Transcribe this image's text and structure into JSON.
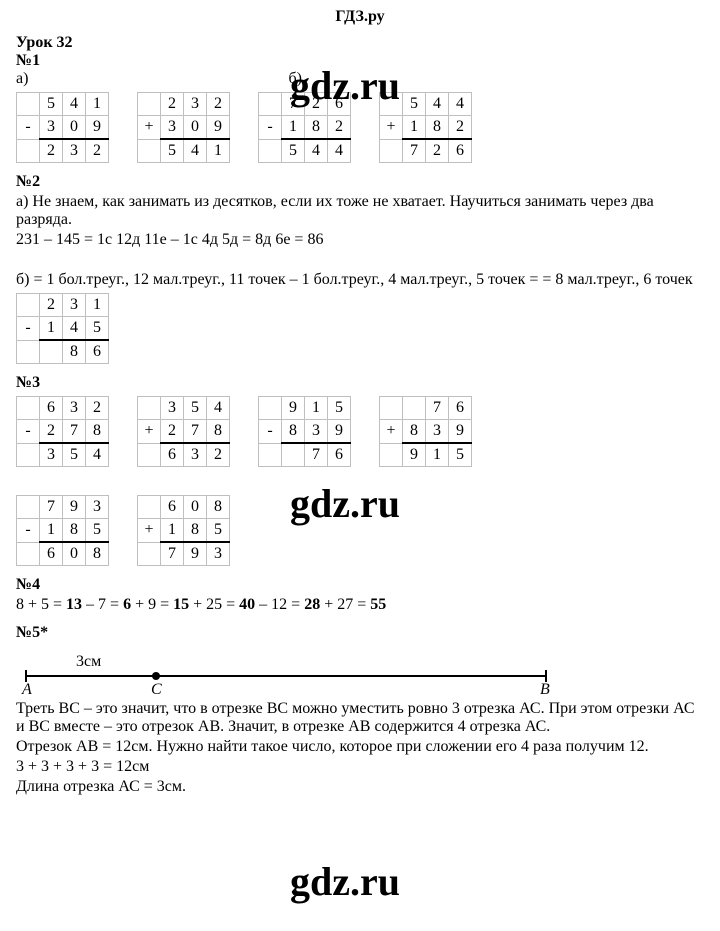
{
  "header": "ГДЗ.ру",
  "watermark": "gdz.ru",
  "lesson_title": "Урок 32",
  "nums": {
    "n1": "№1",
    "n2": "№2",
    "n3": "№3",
    "n4": "№4",
    "n5": "№5*"
  },
  "labels": {
    "a": "а)",
    "b": "б)"
  },
  "q1": {
    "tables": [
      {
        "op": "-",
        "row1": [
          "5",
          "4",
          "1"
        ],
        "row2": [
          "3",
          "0",
          "9"
        ],
        "res": [
          "2",
          "3",
          "2"
        ]
      },
      {
        "op": "+",
        "row1": [
          "2",
          "3",
          "2"
        ],
        "row2": [
          "3",
          "0",
          "9"
        ],
        "res": [
          "5",
          "4",
          "1"
        ]
      },
      {
        "op": "-",
        "row1": [
          "7",
          "2",
          "6"
        ],
        "row2": [
          "1",
          "8",
          "2"
        ],
        "res": [
          "5",
          "4",
          "4"
        ]
      },
      {
        "op": "+",
        "row1": [
          "5",
          "4",
          "4"
        ],
        "row2": [
          "1",
          "8",
          "2"
        ],
        "res": [
          "7",
          "2",
          "6"
        ]
      }
    ]
  },
  "q2": {
    "a_text": "а) Не знаем, как занимать из десятков, если их тоже не хватает. Научиться занимать через два разряда.",
    "a_eq": "231 – 145 = 1с 12д 11е – 1с 4д 5д = 8д 6е = 86",
    "b_text": "б) = 1 бол.треуг., 12 мал.треуг., 11 точек – 1 бол.треуг., 4 мал.треуг., 5 точек = = 8 мал.треуг., 6 точек",
    "table": {
      "op": "-",
      "row1": [
        "2",
        "3",
        "1"
      ],
      "row2": [
        "1",
        "4",
        "5"
      ],
      "res": [
        "",
        "8",
        "6"
      ]
    }
  },
  "q3": {
    "tables": [
      {
        "op": "-",
        "row1": [
          "6",
          "3",
          "2"
        ],
        "row2": [
          "2",
          "7",
          "8"
        ],
        "res": [
          "3",
          "5",
          "4"
        ]
      },
      {
        "op": "+",
        "row1": [
          "3",
          "5",
          "4"
        ],
        "row2": [
          "2",
          "7",
          "8"
        ],
        "res": [
          "6",
          "3",
          "2"
        ]
      },
      {
        "op": "-",
        "row1": [
          "9",
          "1",
          "5"
        ],
        "row2": [
          "8",
          "3",
          "9"
        ],
        "res": [
          "",
          "7",
          "6"
        ]
      },
      {
        "op": "+",
        "row1": [
          "",
          "7",
          "6"
        ],
        "row2": [
          "8",
          "3",
          "9"
        ],
        "res": [
          "9",
          "1",
          "5"
        ]
      },
      {
        "op": "-",
        "row1": [
          "7",
          "9",
          "3"
        ],
        "row2": [
          "1",
          "8",
          "5"
        ],
        "res": [
          "6",
          "0",
          "8"
        ]
      },
      {
        "op": "+",
        "row1": [
          "6",
          "0",
          "8"
        ],
        "row2": [
          "1",
          "8",
          "5"
        ],
        "res": [
          "7",
          "9",
          "3"
        ]
      }
    ]
  },
  "q4": {
    "chain_html": "8 + 5 = <b>13</b> – 7 = <b>6</b> + 9 = <b>15</b> + 25 = <b>40</b> – 12 = <b>28</b> + 27 = <b>55</b>"
  },
  "q5": {
    "dim": "3см",
    "pA": "A",
    "pB": "B",
    "pC": "C",
    "p1": "Треть ВС – это значит, что в отрезке ВС можно уместить ровно 3 отрезка АС. При этом отрезки АС и ВС вместе – это отрезок АВ. Значит, в отрезке АВ содержится 4 отрезка АС.",
    "p2": "Отрезок АВ = 12см. Нужно найти такое число, которое при сложении его 4 раза получим 12.",
    "p3": "3 + 3 + 3 + 3 = 12см",
    "p4": "Длина отрезка АС = 3см."
  }
}
